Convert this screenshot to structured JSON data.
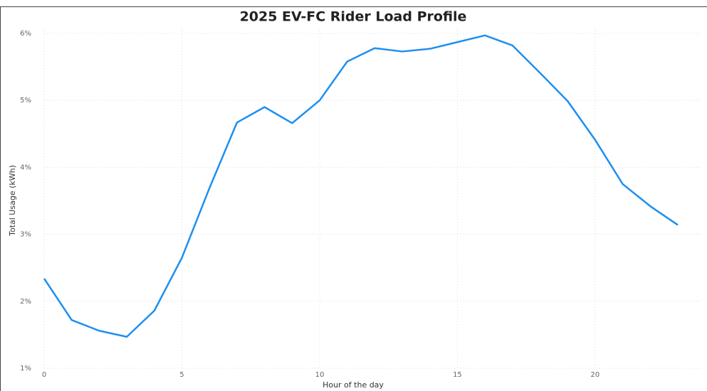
{
  "chart_data": {
    "type": "line",
    "title": "2025 EV-FC Rider Load Profile",
    "x_label": "Hour of the day",
    "y_label": "Total Usage (kWh)",
    "x": [
      0,
      1,
      2,
      3,
      4,
      5,
      6,
      7,
      8,
      9,
      10,
      11,
      12,
      13,
      14,
      15,
      16,
      17,
      18,
      19,
      20,
      21,
      22,
      23
    ],
    "series": [
      {
        "name": "Total Usage",
        "color": "#1e8ff0",
        "values": [
          2.34,
          1.72,
          1.56,
          1.47,
          1.86,
          2.65,
          3.69,
          4.67,
          4.9,
          4.66,
          5.0,
          5.58,
          5.78,
          5.73,
          5.77,
          5.87,
          5.97,
          5.82,
          5.41,
          4.99,
          4.41,
          3.75,
          3.42,
          3.14
        ]
      }
    ],
    "xlim": [
      0,
      23
    ],
    "xticks": [
      0,
      5,
      10,
      15,
      20
    ],
    "ylim": [
      1,
      6
    ],
    "yticks": [
      {
        "value": 1,
        "label": "1%"
      },
      {
        "value": 2,
        "label": "2%"
      },
      {
        "value": 3,
        "label": "3%"
      },
      {
        "value": 4,
        "label": "4%"
      },
      {
        "value": 5,
        "label": "5%"
      },
      {
        "value": 6,
        "label": "6%"
      }
    ],
    "grid": true
  }
}
